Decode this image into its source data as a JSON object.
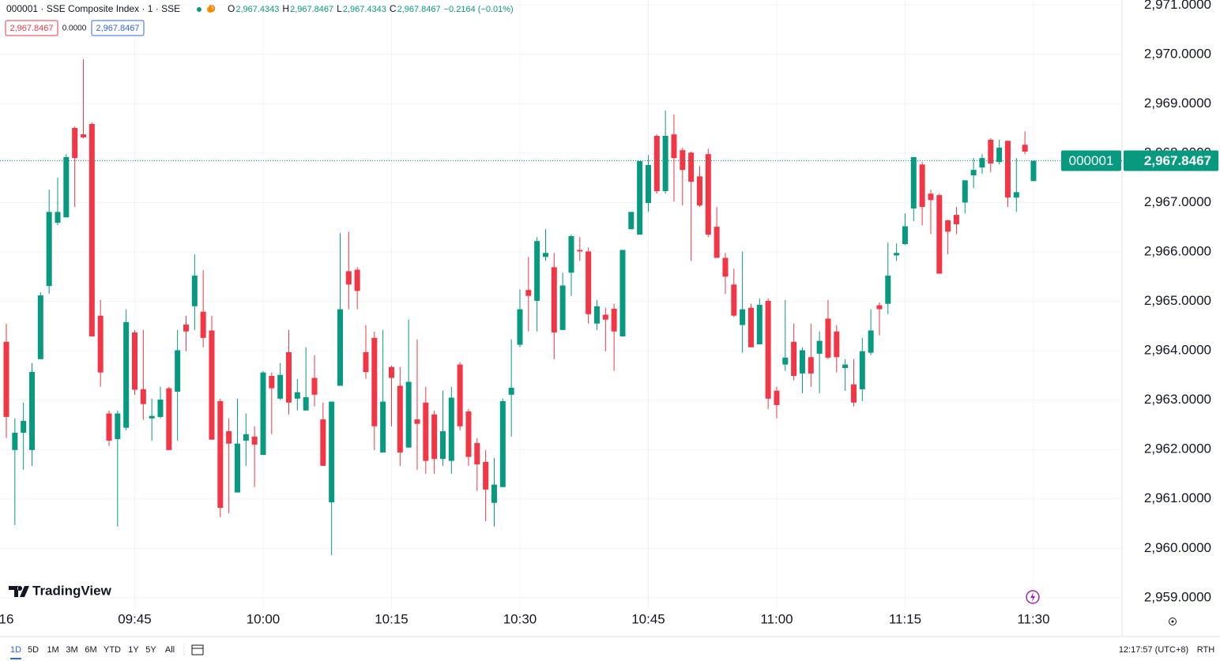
{
  "header": {
    "symbol": "000001 · SSE Composite Index · 1 · SSE",
    "badge": "D",
    "ohlc": [
      {
        "key": "O",
        "value": "2,967.4343"
      },
      {
        "key": "H",
        "value": "2,967.8467"
      },
      {
        "key": "L",
        "value": "2,967.4343"
      },
      {
        "key": "C",
        "value": "2,967.8467"
      }
    ],
    "change": "−0.2164 (−0.01%)",
    "price_boxes": [
      "2,967.8467",
      "0.0000",
      "2,967.8467"
    ]
  },
  "logo": "TradingView",
  "toolbar": {
    "ranges": [
      "1D",
      "5D",
      "1M",
      "3M",
      "6M",
      "YTD",
      "1Y",
      "5Y",
      "All"
    ],
    "clock": "12:17:57 (UTC+8)",
    "session": "RTH"
  },
  "chart_data": {
    "type": "candlestick",
    "up_color": "#089981",
    "down_color": "#f23645",
    "grid": true,
    "categories": [
      "16",
      null,
      null,
      null,
      null,
      null,
      null,
      null,
      null,
      null,
      null,
      null,
      null,
      null,
      null,
      "09:45",
      null,
      null,
      null,
      null,
      null,
      null,
      null,
      null,
      null,
      null,
      null,
      null,
      null,
      null,
      "10:00",
      null,
      null,
      null,
      null,
      null,
      null,
      null,
      null,
      null,
      null,
      null,
      null,
      null,
      null,
      "10:15",
      null,
      null,
      null,
      null,
      null,
      null,
      null,
      null,
      null,
      null,
      null,
      null,
      null,
      null,
      "10:30",
      null,
      null,
      null,
      null,
      null,
      null,
      null,
      null,
      null,
      null,
      null,
      null,
      null,
      null,
      "10:45",
      null,
      null,
      null,
      null,
      null,
      null,
      null,
      null,
      null,
      null,
      null,
      null,
      null,
      null,
      "11:00",
      null,
      null,
      null,
      null,
      null,
      null,
      null,
      null,
      null,
      null,
      null,
      null,
      null,
      null,
      "11:15",
      null,
      null,
      null,
      null,
      null,
      null,
      null,
      null,
      null,
      null,
      null,
      null,
      null,
      null,
      "11:30"
    ],
    "open": [
      2964.18,
      2961.99,
      2962.34,
      2961.99,
      2963.83,
      2965.31,
      2966.59,
      2966.7,
      2968.51,
      2968.38,
      2968.59,
      2964.71,
      2962.73,
      2962.21,
      2962.44,
      2964.37,
      2963.22,
      2962.63,
      2962.66,
      2963.24,
      2963.17,
      2964.53,
      2964.9,
      2964.79,
      2964.41,
      2962.98,
      2962.37,
      2961.13,
      2962.18,
      2962.26,
      2961.89,
      2963.49,
      2963.03,
      2963.97,
      2963.03,
      2962.79,
      2963.45,
      2962.61,
      2960.93,
      2963.29,
      2965.61,
      2965.64,
      2963.97,
      2964.26,
      2961.94,
      2963.67,
      2963.29,
      2962.04,
      2962.61,
      2962.95,
      2962.71,
      2961.81,
      2961.77,
      2963.72,
      2962.77,
      2962.13,
      2961.75,
      2960.92,
      2961.24,
      2963.11,
      2964.12,
      2965.23,
      2965.01,
      2965.9,
      2965.69,
      2964.42,
      2965.58,
      2966.04,
      2966.01,
      2964.55,
      2964.73,
      2964.85,
      2964.29,
      2966.46,
      2966.35,
      2966.99,
      2968.35,
      2967.23,
      2968.38,
      2968.06,
      2968.01,
      2967.53,
      2967.98,
      2966.51,
      2965.88,
      2965.34,
      2964.52,
      2964.87,
      2964.13,
      2965.01,
      2963.19,
      2963.72,
      2964.18,
      2963.54,
      2963.87,
      2963.94,
      2964.65,
      2964.39,
      2963.65,
      2963.32,
      2963.22,
      2963.96,
      2964.92,
      2964.95,
      2965.93,
      2966.16,
      2966.88,
      2967.77,
      2967.18,
      2967.15,
      2966.64,
      2966.75,
      2967.0,
      2967.55,
      2967.71,
      2968.27,
      2967.82,
      2968.25,
      2967.1,
      2968.17,
      2967.4343
    ],
    "high": [
      2964.55,
      2962.63,
      2962.95,
      2963.75,
      2965.18,
      2967.26,
      2967.5,
      2967.98,
      2968.54,
      2969.9,
      2968.62,
      2965.03,
      2962.79,
      2962.79,
      2964.84,
      2964.42,
      2964.42,
      2963.03,
      2963.27,
      2963.27,
      2964.42,
      2964.71,
      2965.95,
      2965.63,
      2964.71,
      2963.03,
      2962.63,
      2963.03,
      2962.73,
      2962.47,
      2963.59,
      2963.56,
      2963.75,
      2964.42,
      2963.43,
      2964.07,
      2963.91,
      2962.95,
      2962.97,
      2966.38,
      2966.41,
      2965.69,
      2964.52,
      2964.39,
      2964.42,
      2963.7,
      2963.67,
      2964.63,
      2964.23,
      2963.27,
      2962.79,
      2963.19,
      2963.27,
      2963.77,
      2962.82,
      2962.23,
      2961.99,
      2961.83,
      2963.03,
      2964.23,
      2965.24,
      2965.9,
      2966.3,
      2966.46,
      2965.98,
      2965.58,
      2966.35,
      2966.3,
      2966.09,
      2965.03,
      2964.87,
      2964.95,
      2966.04,
      2966.81,
      2967.84,
      2967.96,
      2968.38,
      2968.86,
      2968.78,
      2968.11,
      2968.03,
      2967.74,
      2968.09,
      2966.91,
      2965.98,
      2965.66,
      2966.01,
      2964.95,
      2965.06,
      2965.06,
      2963.27,
      2965.03,
      2964.55,
      2964.07,
      2964.55,
      2964.39,
      2965.03,
      2964.52,
      2963.83,
      2963.83,
      2964.26,
      2964.84,
      2964.98,
      2966.19,
      2966.17,
      2966.78,
      2967.92,
      2967.82,
      2967.26,
      2967.18,
      2966.65,
      2966.91,
      2967.45,
      2967.9,
      2967.98,
      2968.3,
      2968.27,
      2968.25,
      2967.9,
      2968.44,
      2967.8467
    ],
    "low": [
      2962.23,
      2960.47,
      2961.59,
      2961.67,
      2963.83,
      2965.15,
      2966.54,
      2966.7,
      2966.91,
      2968.3,
      2964.29,
      2963.27,
      2962.07,
      2960.44,
      2962.39,
      2963.11,
      2962.6,
      2962.18,
      2962.63,
      2961.99,
      2962.18,
      2963.99,
      2964.42,
      2964.07,
      2962.2,
      2960.63,
      2960.71,
      2961.13,
      2961.67,
      2961.24,
      2961.89,
      2962.31,
      2963.0,
      2962.71,
      2962.79,
      2962.79,
      2962.87,
      2961.67,
      2959.86,
      2963.29,
      2964.84,
      2964.84,
      2963.43,
      2961.99,
      2961.94,
      2962.47,
      2961.67,
      2962.04,
      2961.59,
      2961.51,
      2961.51,
      2961.67,
      2961.51,
      2962.39,
      2961.67,
      2961.16,
      2960.55,
      2960.44,
      2961.24,
      2962.26,
      2964.07,
      2964.39,
      2964.39,
      2965.82,
      2963.83,
      2964.42,
      2965.11,
      2965.82,
      2964.55,
      2964.42,
      2963.99,
      2963.59,
      2964.29,
      2966.46,
      2966.35,
      2966.81,
      2967.18,
      2967.18,
      2967.02,
      2966.94,
      2965.82,
      2966.91,
      2966.3,
      2965.88,
      2965.15,
      2964.68,
      2963.96,
      2964.07,
      2964.13,
      2962.82,
      2962.63,
      2963.59,
      2963.4,
      2963.14,
      2963.27,
      2963.14,
      2963.83,
      2963.56,
      2963.19,
      2962.87,
      2962.98,
      2963.91,
      2964.31,
      2964.74,
      2965.82,
      2966.14,
      2966.62,
      2966.54,
      2966.36,
      2965.56,
      2965.95,
      2966.36,
      2966.78,
      2967.29,
      2967.58,
      2967.61,
      2967.77,
      2966.91,
      2966.81,
      2967.98,
      2967.4343
    ],
    "close": [
      2962.66,
      2962.34,
      2962.58,
      2963.57,
      2965.12,
      2966.81,
      2966.81,
      2967.92,
      2967.9,
      2968.32,
      2964.29,
      2963.56,
      2962.18,
      2962.73,
      2964.58,
      2963.21,
      2962.92,
      2962.68,
      2963.01,
      2961.99,
      2964.01,
      2964.39,
      2965.52,
      2964.26,
      2962.2,
      2960.82,
      2962.12,
      2962.12,
      2962.31,
      2962.1,
      2963.56,
      2963.24,
      2963.51,
      2962.95,
      2963.16,
      2963.06,
      2963.11,
      2961.67,
      2962.97,
      2964.84,
      2965.34,
      2965.21,
      2963.57,
      2962.47,
      2962.97,
      2963.45,
      2961.94,
      2963.37,
      2962.52,
      2961.77,
      2961.81,
      2962.37,
      2963.05,
      2962.47,
      2961.85,
      2961.7,
      2961.19,
      2961.29,
      2962.98,
      2963.25,
      2964.84,
      2965.11,
      2966.22,
      2965.98,
      2964.37,
      2965.32,
      2966.32,
      2966.01,
      2964.74,
      2964.9,
      2964.63,
      2964.39,
      2966.04,
      2966.81,
      2967.84,
      2967.76,
      2967.23,
      2968.35,
      2967.9,
      2967.66,
      2967.42,
      2966.94,
      2966.35,
      2965.88,
      2965.5,
      2964.71,
      2964.84,
      2964.07,
      2964.93,
      2963.03,
      2962.9,
      2963.86,
      2963.49,
      2964.01,
      2963.54,
      2964.2,
      2963.86,
      2963.87,
      2963.72,
      2962.95,
      2963.99,
      2964.41,
      2964.84,
      2965.52,
      2965.98,
      2966.52,
      2967.92,
      2966.91,
      2967.05,
      2965.56,
      2966.41,
      2966.56,
      2967.45,
      2967.66,
      2967.9,
      2967.79,
      2968.11,
      2967.1,
      2967.21,
      2968.03,
      2967.8467
    ],
    "ylim": [
      2958.79,
      2971.1
    ],
    "yticks": [
      {
        "value": 2959,
        "label": "2,959.0000"
      },
      {
        "value": 2960,
        "label": "2,960.0000"
      },
      {
        "value": 2961,
        "label": "2,961.0000"
      },
      {
        "value": 2962,
        "label": "2,962.0000"
      },
      {
        "value": 2963,
        "label": "2,963.0000"
      },
      {
        "value": 2964,
        "label": "2,964.0000"
      },
      {
        "value": 2965,
        "label": "2,965.0000"
      },
      {
        "value": 2966,
        "label": "2,966.0000"
      },
      {
        "value": 2967,
        "label": "2,967.0000"
      },
      {
        "value": 2968,
        "label": "2,968.0000"
      },
      {
        "value": 2969,
        "label": "2,969.0000"
      },
      {
        "value": 2970,
        "label": "2,970.0000"
      },
      {
        "value": 2971,
        "label": "2,971.0000"
      }
    ],
    "last_price": {
      "symbol": "000001",
      "value": 2967.8467,
      "label": "2,967.8467"
    }
  }
}
